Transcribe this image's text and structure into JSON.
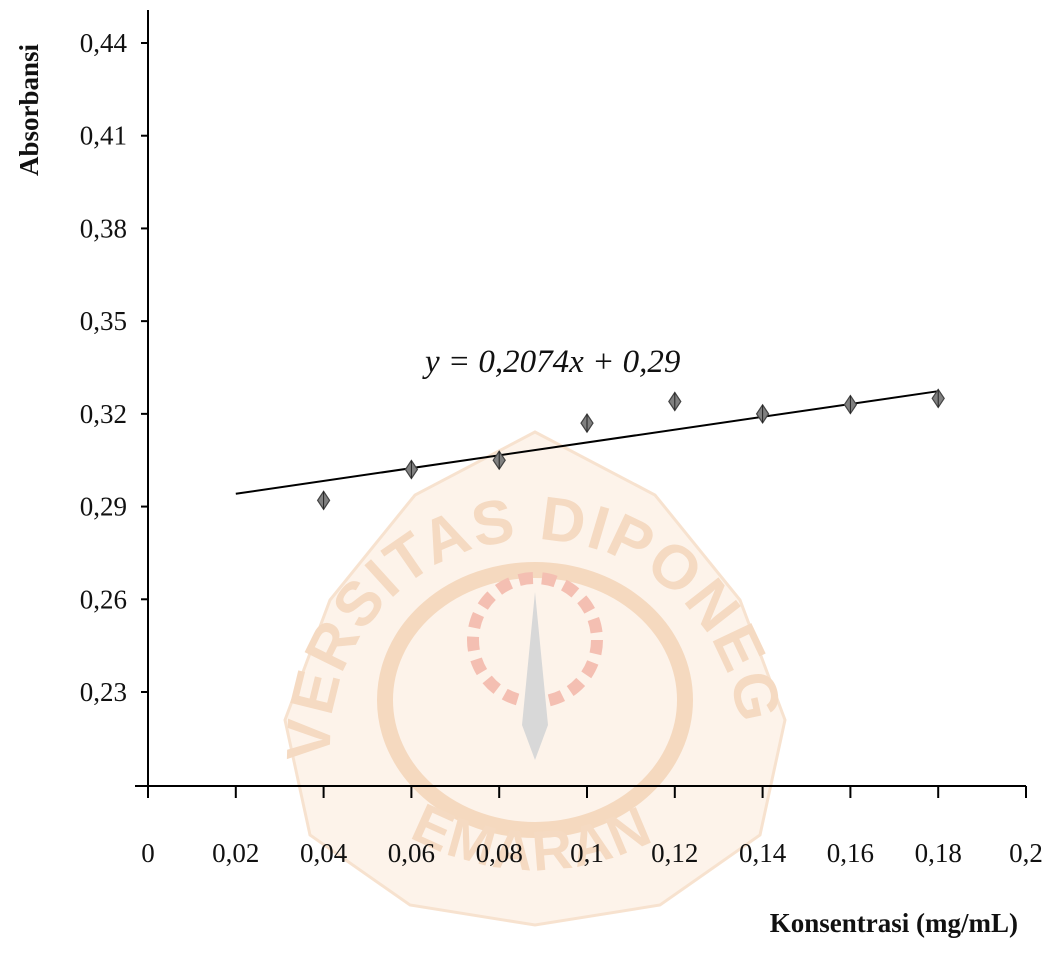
{
  "chart_data": {
    "type": "scatter",
    "title": "",
    "xlabel": "Konsentrasi (mg/mL)",
    "ylabel": "Absorbansi",
    "x_ticks": [
      "0",
      "0,02",
      "0,04",
      "0,06",
      "0,08",
      "0,1",
      "0,12",
      "0,14",
      "0,16",
      "0,18",
      "0,2"
    ],
    "y_ticks": [
      "0,23",
      "0,26",
      "0,29",
      "0,32",
      "0,35",
      "0,38",
      "0,41",
      "0,44"
    ],
    "xlim": [
      0,
      0.2
    ],
    "ylim": [
      0.2,
      0.45
    ],
    "grid": false,
    "series": [
      {
        "x": [
          0.04,
          0.06,
          0.08,
          0.1,
          0.12,
          0.14,
          0.16,
          0.18
        ],
        "y": [
          0.292,
          0.302,
          0.305,
          0.317,
          0.324,
          0.32,
          0.323,
          0.325
        ]
      }
    ],
    "trendline": {
      "slope": 0.2074,
      "intercept": 0.29,
      "x_range": [
        0.02,
        0.18
      ],
      "equation": "y = 0,2074x + 0,29"
    },
    "marker_color": "#808080",
    "line_color": "#000000"
  },
  "watermark": {
    "top_text": "UNIVERSITAS DIPONEGORO",
    "bottom_text": "SEMARANG",
    "color": "#f3d2b4"
  }
}
